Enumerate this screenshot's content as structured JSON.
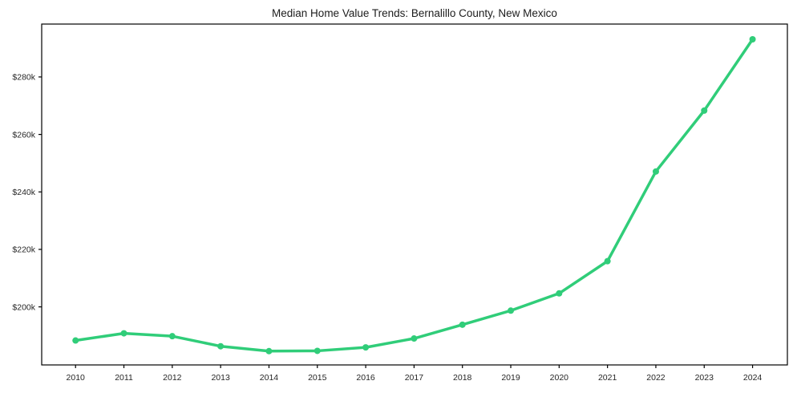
{
  "chart_data": {
    "type": "line",
    "title": "Median Home Value Trends: Bernalillo County, New Mexico",
    "x": [
      2010,
      2011,
      2012,
      2013,
      2014,
      2015,
      2016,
      2017,
      2018,
      2019,
      2020,
      2021,
      2022,
      2023,
      2024
    ],
    "x_tick_labels": [
      "2010",
      "2011",
      "2012",
      "2013",
      "2014",
      "2015",
      "2016",
      "2017",
      "2018",
      "2019",
      "2020",
      "2021",
      "2022",
      "2023",
      "2024"
    ],
    "values": [
      188300,
      190800,
      189800,
      186300,
      184600,
      184700,
      185900,
      189000,
      193800,
      198700,
      204700,
      215900,
      247100,
      268300,
      293100
    ],
    "y_ticks": [
      {
        "value": 200000,
        "label": "$200k"
      },
      {
        "value": 220000,
        "label": "$220k"
      },
      {
        "value": 240000,
        "label": "$240k"
      },
      {
        "value": 260000,
        "label": "$260k"
      },
      {
        "value": 280000,
        "label": "$280k"
      }
    ],
    "xlabel": "",
    "ylabel": "",
    "xlim": [
      2009.3,
      2024.72
    ],
    "ylim": [
      179800,
      298400
    ],
    "grid": false,
    "legend": "none",
    "line_color": "#30cd79",
    "axis_color": "#000000",
    "tick_label_color": "#262626",
    "title_color": "#1c1c1c",
    "marker": "circle"
  }
}
